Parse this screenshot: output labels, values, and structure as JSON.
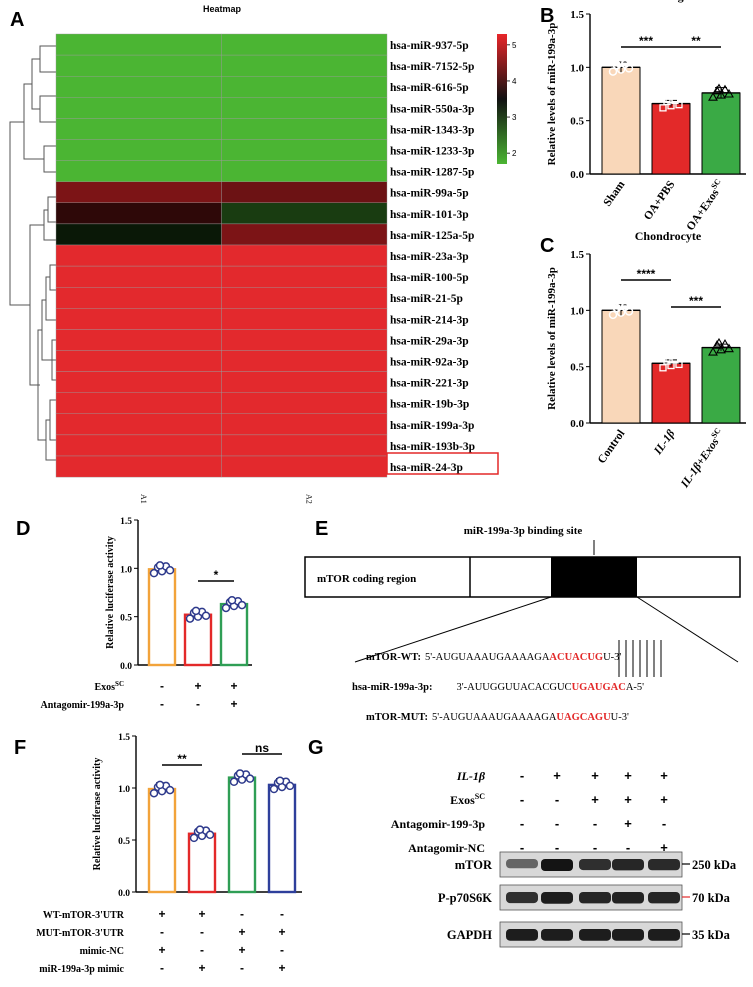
{
  "panels": {
    "a": "A",
    "b": "B",
    "c": "C",
    "d": "D",
    "e": "E",
    "f": "F",
    "g": "G"
  },
  "chart_data": [
    {
      "id": "A",
      "type": "heatmap",
      "title": "Heatmap",
      "columns": [
        "A1",
        "A2"
      ],
      "rows": [
        "hsa-miR-937-5p",
        "hsa-miR-7152-5p",
        "hsa-miR-616-5p",
        "hsa-miR-550a-3p",
        "hsa-miR-1343-3p",
        "hsa-miR-1233-3p",
        "hsa-miR-1287-5p",
        "hsa-miR-99a-5p",
        "hsa-miR-101-3p",
        "hsa-miR-125a-5p",
        "hsa-miR-23a-3p",
        "hsa-miR-100-5p",
        "hsa-miR-21-5p",
        "hsa-miR-214-3p",
        "hsa-miR-29a-3p",
        "hsa-miR-92a-3p",
        "hsa-miR-221-3p",
        "hsa-miR-19b-3p",
        "hsa-miR-199a-3p",
        "hsa-miR-193b-3p",
        "hsa-miR-24-3p"
      ],
      "values": [
        [
          2,
          2
        ],
        [
          2,
          2
        ],
        [
          2,
          2
        ],
        [
          2,
          2
        ],
        [
          2,
          2
        ],
        [
          2,
          2
        ],
        [
          2,
          2
        ],
        [
          4.3,
          4.2
        ],
        [
          3.8,
          3.0
        ],
        [
          3.3,
          4.3
        ],
        [
          5.3,
          5.3
        ],
        [
          5.3,
          5.3
        ],
        [
          5.3,
          5.3
        ],
        [
          5.3,
          5.3
        ],
        [
          5.3,
          5.3
        ],
        [
          5.3,
          5.3
        ],
        [
          5.3,
          5.3
        ],
        [
          5.3,
          5.3
        ],
        [
          5.3,
          5.3
        ],
        [
          5.3,
          5.3
        ],
        [
          5.3,
          5.3
        ]
      ],
      "highlighted_row": "hsa-miR-199a-3p",
      "colorbar": {
        "min": 2,
        "max": 5,
        "ticks": [
          "5",
          "4",
          "3",
          "2"
        ],
        "colors": [
          "#4bb533",
          "#000000",
          "#e8262a"
        ]
      }
    },
    {
      "id": "B",
      "type": "bar",
      "title": "Cartilge",
      "ylabel": "Relative levels of miR-199a-3p",
      "categories": [
        "Sham",
        "OA+PBS",
        "OA+Exos"
      ],
      "category_superscripts": [
        "",
        "",
        "SC"
      ],
      "values": [
        1.0,
        0.66,
        0.76
      ],
      "errors": [
        0.05,
        0.03,
        0.05
      ],
      "colors": [
        "#f9d7b9",
        "#e32929",
        "#3aaa45"
      ],
      "ylim": [
        0,
        1.5
      ],
      "yticks": [
        "0.0",
        "0.5",
        "1.0",
        "1.5"
      ],
      "significance": [
        {
          "from": 0,
          "to": 1,
          "label": "***"
        },
        {
          "from": 1,
          "to": 2,
          "label": "**"
        }
      ]
    },
    {
      "id": "C",
      "type": "bar",
      "title": "Chondrocyte",
      "ylabel": "Relative levels of miR-199a-3p",
      "categories": [
        "Control",
        "IL-1β",
        "IL-1β+Exos"
      ],
      "category_superscripts": [
        "",
        "",
        "SC"
      ],
      "values": [
        1.0,
        0.53,
        0.67
      ],
      "errors": [
        0.05,
        0.03,
        0.03
      ],
      "colors": [
        "#f9d7b9",
        "#e32929",
        "#3aaa45"
      ],
      "ylim": [
        0,
        1.5
      ],
      "yticks": [
        "0.0",
        "0.5",
        "1.0",
        "1.5"
      ],
      "significance": [
        {
          "from": 0,
          "to": 1,
          "label": "****"
        },
        {
          "from": 1,
          "to": 2,
          "label": "***"
        }
      ]
    },
    {
      "id": "D",
      "type": "bar",
      "ylabel": "Relative luciferase activity",
      "values": [
        0.99,
        0.52,
        0.63
      ],
      "errors": [
        0.05,
        0.05,
        0.05
      ],
      "colors": [
        "#f2a33a",
        "#e32929",
        "#2f9e55"
      ],
      "ylim": [
        0,
        1.5
      ],
      "yticks": [
        "0.0",
        "0.5",
        "1.0",
        "1.5"
      ],
      "significance": [
        {
          "from": 1,
          "to": 2,
          "label": "*"
        }
      ],
      "conditions": [
        {
          "label": "Exos",
          "sup": "SC",
          "marks": [
            "-",
            "+",
            "+"
          ]
        },
        {
          "label": "Antagomir-199a-3p",
          "sup": "",
          "marks": [
            "-",
            "-",
            "+"
          ]
        }
      ]
    },
    {
      "id": "F",
      "type": "bar",
      "ylabel": "Relative luciferase activity",
      "values": [
        0.99,
        0.56,
        1.1,
        1.03
      ],
      "errors": [
        0.06,
        0.04,
        0.05,
        0.06
      ],
      "colors": [
        "#f2a33a",
        "#e32929",
        "#2f9e55",
        "#2e3f9b"
      ],
      "ylim": [
        0,
        1.5
      ],
      "yticks": [
        "0.0",
        "0.5",
        "1.0",
        "1.5"
      ],
      "significance": [
        {
          "from": 0,
          "to": 1,
          "label": "**"
        },
        {
          "from": 2,
          "to": 3,
          "label": "ns"
        }
      ],
      "conditions": [
        {
          "label": "WT-mTOR-3'UTR",
          "marks": [
            "+",
            "+",
            "-",
            "-"
          ]
        },
        {
          "label": "MUT-mTOR-3'UTR",
          "marks": [
            "-",
            "-",
            "+",
            "+"
          ]
        },
        {
          "label": "mimic-NC",
          "marks": [
            "+",
            "-",
            "+",
            "-"
          ]
        },
        {
          "label": "miR-199a-3p mimic",
          "marks": [
            "-",
            "+",
            "-",
            "+"
          ]
        }
      ]
    }
  ],
  "panel_e": {
    "binding_site": "miR-199a-3p binding site",
    "coding_region": "mTOR coding region",
    "wt_label": "mTOR-WT:",
    "wt_prefix": "5'-AUGUAAAUGAAAAGA",
    "wt_site": "ACUACUG",
    "wt_suffix": "U-3'",
    "mir_label": "hsa-miR-199a-3p:",
    "mir_prefix": "3'-AUUGGUUACACGUC",
    "mir_site": "UGAUGAC",
    "mir_suffix": "A-5'",
    "mut_label": "mTOR-MUT:",
    "mut_prefix": "5'-AUGUAAAUGAAAAGA",
    "mut_site": "UAGCAGU",
    "mut_suffix": "U-3'"
  },
  "panel_g": {
    "conditions": [
      {
        "label": "IL-1β",
        "marks": [
          "-",
          "+",
          "+",
          "+",
          "+"
        ]
      },
      {
        "label": "Exos",
        "sup": "SC",
        "marks": [
          "-",
          "-",
          "+",
          "+",
          "+"
        ]
      },
      {
        "label": "Antagomir-199-3p",
        "marks": [
          "-",
          "-",
          "-",
          "+",
          "-"
        ]
      },
      {
        "label": "Antagomir-NC",
        "marks": [
          "-",
          "-",
          "-",
          "-",
          "+"
        ]
      }
    ],
    "blots": [
      {
        "name": "mTOR",
        "size": "250 kDa",
        "intensity": [
          0.55,
          1.0,
          0.85,
          0.9,
          0.88
        ]
      },
      {
        "name": "P-p70S6K",
        "size": "70 kDa",
        "intensity": [
          0.85,
          0.95,
          0.9,
          0.92,
          0.9
        ]
      },
      {
        "name": "GAPDH",
        "size": "35 kDa",
        "intensity": [
          0.95,
          0.95,
          0.95,
          0.95,
          0.95
        ]
      }
    ]
  }
}
